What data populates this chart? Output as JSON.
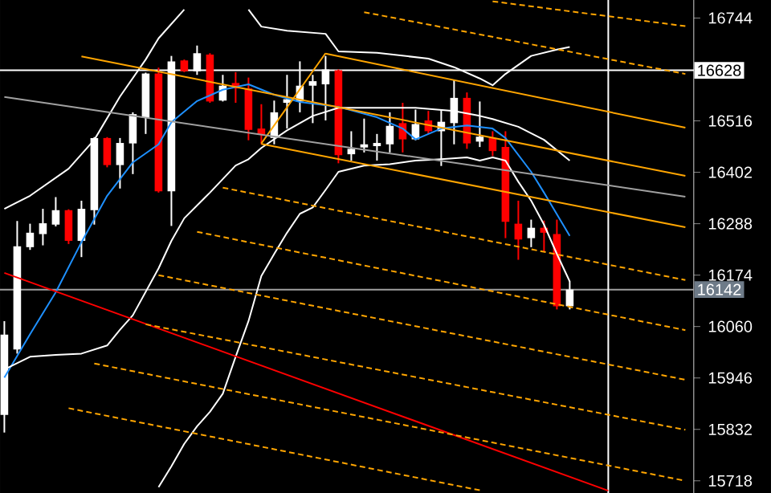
{
  "chart_data": {
    "type": "candlestick",
    "categories": [
      null,
      null,
      null,
      null,
      null,
      null,
      null,
      null,
      null,
      null,
      null,
      null,
      null,
      null,
      null,
      null,
      null,
      null,
      null,
      null,
      null,
      null,
      null,
      null,
      null,
      null,
      null,
      null,
      null,
      null,
      null,
      null,
      null,
      null,
      null,
      null,
      null,
      null,
      null,
      null,
      null,
      null,
      null,
      null,
      null,
      null,
      null,
      null,
      null,
      null,
      null,
      null,
      null,
      null
    ],
    "ohlc": [
      [
        15864,
        16072,
        15825,
        16042
      ],
      [
        16009,
        16294,
        16000,
        16238
      ],
      [
        16236,
        16288,
        16230,
        16268
      ],
      [
        16265,
        16321,
        16240,
        16289
      ],
      [
        16286,
        16347,
        16282,
        16318
      ],
      [
        16318,
        16320,
        16243,
        16250
      ],
      [
        16250,
        16339,
        16214,
        16321
      ],
      [
        16318,
        16480,
        16286,
        16478
      ],
      [
        16478,
        16480,
        16413,
        16418
      ],
      [
        16418,
        16478,
        16366,
        16467
      ],
      [
        16466,
        16535,
        16398,
        16531
      ],
      [
        16523,
        16623,
        16487,
        16621
      ],
      [
        16621,
        16634,
        16357,
        16360
      ],
      [
        16360,
        16660,
        16283,
        16648
      ],
      [
        16650,
        16652,
        16624,
        16626
      ],
      [
        16626,
        16683,
        16618,
        16666
      ],
      [
        16663,
        16666,
        16556,
        16559
      ],
      [
        16561,
        16618,
        16559,
        16594
      ],
      [
        16600,
        16624,
        16556,
        16588
      ],
      [
        16588,
        16612,
        16473,
        16496
      ],
      [
        16499,
        16553,
        16464,
        16485
      ],
      [
        16478,
        16561,
        16464,
        16535
      ],
      [
        16556,
        16618,
        16499,
        16564
      ],
      [
        16559,
        16648,
        16535,
        16594
      ],
      [
        16594,
        16618,
        16511,
        16604
      ],
      [
        16597,
        16660,
        16517,
        16630
      ],
      [
        16628,
        16630,
        16422,
        16440
      ],
      [
        16442,
        16493,
        16428,
        16454
      ],
      [
        16457,
        16521,
        16446,
        16464
      ],
      [
        16460,
        16487,
        16428,
        16467
      ],
      [
        16464,
        16535,
        16446,
        16505
      ],
      [
        16511,
        16556,
        16446,
        16475
      ],
      [
        16475,
        16541,
        16473,
        16509
      ],
      [
        16517,
        16538,
        16487,
        16493
      ],
      [
        16493,
        16541,
        16416,
        16514
      ],
      [
        16511,
        16606,
        16464,
        16567
      ],
      [
        16567,
        16579,
        16454,
        16466
      ],
      [
        16470,
        16559,
        16458,
        16481
      ],
      [
        16478,
        16493,
        16438,
        16449
      ],
      [
        16458,
        16493,
        16256,
        16292
      ],
      [
        16288,
        16339,
        16208,
        16253
      ],
      [
        16256,
        16297,
        16236,
        16279
      ],
      [
        16279,
        16295,
        16226,
        16268
      ],
      [
        16265,
        16297,
        16098,
        16105
      ],
      [
        16105,
        16161,
        16098,
        16142
      ],
      null,
      null,
      null,
      null,
      null,
      null,
      null,
      null,
      null
    ],
    "colors": [
      "#ffffff",
      "#ffffff",
      "#ffffff",
      "#ffffff",
      "#ffffff",
      "#ff0000",
      "#ffffff",
      "#ffffff",
      "#ff0000",
      "#ffffff",
      "#ffffff",
      "#ffffff",
      "#ff0000",
      "#ffffff",
      "#ff0000",
      "#ffffff",
      "#ff0000",
      "#ffffff",
      "#ff0000",
      "#ff0000",
      "#ff0000",
      "#ffffff",
      "#ffffff",
      "#ffffff",
      "#ffffff",
      "#ffffff",
      "#ff0000",
      "#ffffff",
      "#ffffff",
      "#ffffff",
      "#ffffff",
      "#ff0000",
      "#ffffff",
      "#ff0000",
      "#ffffff",
      "#ffffff",
      "#ff0000",
      "#ffffff",
      "#ff0000",
      "#ff0000",
      "#ff0000",
      "#ffffff",
      "#ff0000",
      "#ff0000",
      "#ffffff",
      null,
      null,
      null,
      null,
      null,
      null,
      null,
      null,
      null
    ],
    "series": [
      {
        "type": "line",
        "color": "#1e90ff",
        "values": [
          15947,
          null,
          16043,
          null,
          16136,
          null,
          16247,
          null,
          16350,
          null,
          16424,
          null,
          16464,
          16513,
          null,
          16560,
          null,
          16585,
          null,
          16597,
          null,
          16574,
          null,
          16558,
          null,
          null,
          16547,
          null,
          null,
          16524,
          null,
          16499,
          16475,
          null,
          16499,
          null,
          16506,
          null,
          16499,
          16478,
          null,
          16403,
          16357,
          null,
          16261,
          null,
          null,
          null,
          null,
          null,
          null,
          null,
          null,
          null
        ]
      },
      {
        "type": "line",
        "color": "#ffffff",
        "values": [
          16321,
          null,
          16350,
          null,
          null,
          16410,
          null,
          16474,
          null,
          16570,
          null,
          16652,
          16699,
          16731,
          16763,
          null,
          null,
          null,
          null,
          null,
          null,
          null,
          null,
          null,
          null,
          null,
          null,
          null,
          null,
          null,
          null,
          null,
          null,
          null,
          null,
          null,
          null,
          null,
          null,
          null,
          null,
          null,
          null,
          null,
          null,
          null,
          null,
          null,
          null,
          null,
          null,
          null,
          null,
          null
        ]
      },
      {
        "type": "line",
        "color": "#ffffff",
        "values": [
          null,
          null,
          null,
          null,
          null,
          null,
          null,
          null,
          null,
          null,
          null,
          null,
          null,
          null,
          null,
          null,
          null,
          null,
          null,
          16763,
          16725,
          null,
          16716,
          null,
          null,
          16709,
          16670,
          null,
          null,
          16667,
          null,
          null,
          null,
          16654,
          null,
          16635,
          null,
          16610,
          16595,
          16620,
          null,
          16660,
          null,
          16674,
          16680,
          null,
          null,
          null,
          null,
          null,
          null,
          null,
          null,
          null
        ]
      },
      {
        "type": "line",
        "color": "#ffffff",
        "values": [
          15965,
          null,
          15993,
          null,
          15997,
          null,
          16000,
          null,
          16018,
          16053,
          16085,
          null,
          16189,
          16250,
          16300,
          null,
          16357,
          null,
          16417,
          16431,
          16456,
          null,
          16495,
          null,
          16527,
          null,
          16545,
          null,
          null,
          16545,
          null,
          null,
          16545,
          null,
          null,
          16538,
          null,
          16527,
          16520,
          null,
          16503,
          null,
          16474,
          null,
          16428,
          null,
          null,
          null,
          null,
          null,
          null,
          null,
          null,
          null
        ]
      },
      {
        "type": "line",
        "color": "#ffffff",
        "values": [
          null,
          null,
          null,
          null,
          null,
          null,
          null,
          null,
          null,
          null,
          null,
          null,
          15704,
          15750,
          15800,
          15839,
          15871,
          15911,
          15993,
          16072,
          16172,
          16221,
          16268,
          16310,
          16324,
          16363,
          16403,
          null,
          16417,
          null,
          16420,
          null,
          16428,
          null,
          16431,
          null,
          16435,
          16428,
          16435,
          16428,
          16381,
          16339,
          16286,
          16221,
          16160,
          null,
          null,
          null,
          null,
          null,
          null,
          null,
          null,
          null
        ]
      },
      {
        "type": "line",
        "color": "#ffa500",
        "values": [
          null,
          null,
          null,
          null,
          null,
          null,
          null,
          null,
          null,
          null,
          null,
          null,
          null,
          null,
          null,
          null,
          null,
          null,
          null,
          null,
          null,
          null,
          null,
          null,
          null,
          16665,
          null,
          null,
          null,
          null,
          null,
          null,
          null,
          null,
          null,
          null,
          null,
          null,
          null,
          null,
          null,
          null,
          null,
          null,
          null,
          null,
          null,
          null,
          null,
          null,
          null,
          null,
          null,
          16501
        ]
      },
      {
        "type": "line",
        "color": "#ffa500",
        "values": [
          null,
          null,
          null,
          null,
          null,
          null,
          16659,
          null,
          null,
          null,
          null,
          null,
          null,
          null,
          null,
          null,
          null,
          null,
          null,
          null,
          null,
          null,
          null,
          null,
          null,
          null,
          null,
          null,
          null,
          null,
          null,
          null,
          null,
          null,
          null,
          null,
          null,
          null,
          null,
          null,
          null,
          null,
          null,
          null,
          null,
          null,
          null,
          null,
          null,
          null,
          null,
          null,
          null,
          16394
        ]
      },
      {
        "type": "line",
        "color": "#ffa500",
        "values": [
          null,
          null,
          null,
          null,
          null,
          null,
          null,
          null,
          null,
          null,
          null,
          null,
          null,
          null,
          null,
          null,
          null,
          null,
          null,
          null,
          16465,
          null,
          null,
          null,
          null,
          null,
          null,
          null,
          null,
          null,
          null,
          null,
          null,
          null,
          null,
          null,
          null,
          null,
          null,
          null,
          null,
          null,
          null,
          null,
          null,
          null,
          null,
          null,
          null,
          null,
          null,
          null,
          null,
          16280
        ]
      },
      {
        "type": "line",
        "color": "#ffa500",
        "values": [
          null,
          null,
          null,
          null,
          null,
          null,
          null,
          null,
          null,
          null,
          null,
          null,
          null,
          null,
          null,
          null,
          null,
          null,
          null,
          null,
          16466,
          null,
          null,
          null,
          null,
          16666,
          null,
          null,
          null,
          null,
          null,
          null,
          null,
          null,
          null,
          null,
          null,
          null,
          null,
          null,
          null,
          null,
          null,
          null,
          null,
          null,
          null,
          null,
          null,
          null,
          null,
          null,
          null,
          null
        ]
      },
      {
        "type": "line",
        "color": "#ffa500",
        "line_style": "dashed",
        "values": [
          null,
          null,
          null,
          null,
          null,
          null,
          null,
          null,
          null,
          null,
          null,
          null,
          null,
          null,
          null,
          null,
          null,
          null,
          null,
          null,
          null,
          null,
          null,
          null,
          null,
          null,
          null,
          null,
          null,
          null,
          null,
          null,
          null,
          null,
          null,
          null,
          null,
          null,
          16781,
          null,
          null,
          null,
          null,
          null,
          null,
          null,
          null,
          null,
          null,
          null,
          null,
          null,
          null,
          16726
        ]
      },
      {
        "type": "line",
        "color": "#ffa500",
        "line_style": "dashed",
        "values": [
          null,
          null,
          null,
          null,
          null,
          null,
          null,
          null,
          null,
          null,
          null,
          null,
          null,
          null,
          null,
          null,
          null,
          null,
          null,
          null,
          null,
          null,
          null,
          null,
          null,
          null,
          null,
          null,
          16757,
          null,
          null,
          null,
          null,
          null,
          null,
          null,
          null,
          null,
          null,
          null,
          null,
          null,
          null,
          null,
          null,
          null,
          null,
          null,
          null,
          null,
          null,
          null,
          null,
          16620
        ]
      },
      {
        "type": "line",
        "color": "#ffa500",
        "line_style": "dashed",
        "values": [
          null,
          null,
          null,
          null,
          null,
          null,
          null,
          null,
          null,
          null,
          null,
          null,
          null,
          null,
          null,
          null,
          null,
          16368,
          null,
          null,
          null,
          null,
          null,
          null,
          null,
          null,
          null,
          null,
          null,
          null,
          null,
          null,
          null,
          null,
          null,
          null,
          null,
          null,
          null,
          null,
          null,
          null,
          null,
          null,
          null,
          null,
          null,
          null,
          null,
          null,
          null,
          null,
          null,
          16163
        ]
      },
      {
        "type": "line",
        "color": "#ffa500",
        "line_style": "dashed",
        "values": [
          null,
          null,
          null,
          null,
          null,
          null,
          null,
          null,
          null,
          null,
          null,
          null,
          null,
          null,
          null,
          16270,
          null,
          null,
          null,
          null,
          null,
          null,
          null,
          null,
          null,
          null,
          null,
          null,
          null,
          null,
          null,
          null,
          null,
          null,
          null,
          null,
          null,
          null,
          null,
          null,
          null,
          null,
          null,
          null,
          null,
          null,
          null,
          null,
          null,
          null,
          null,
          null,
          null,
          16052
        ]
      },
      {
        "type": "line",
        "color": "#ffa500",
        "line_style": "dashed",
        "values": [
          null,
          null,
          null,
          null,
          null,
          null,
          null,
          null,
          null,
          null,
          null,
          null,
          16174,
          null,
          null,
          null,
          null,
          null,
          null,
          null,
          null,
          null,
          null,
          null,
          null,
          null,
          null,
          null,
          null,
          null,
          null,
          null,
          null,
          null,
          null,
          null,
          null,
          null,
          null,
          null,
          null,
          null,
          null,
          null,
          null,
          null,
          null,
          null,
          null,
          null,
          null,
          null,
          null,
          15942
        ]
      },
      {
        "type": "line",
        "color": "#ffa500",
        "line_style": "dashed",
        "values": [
          null,
          null,
          null,
          null,
          null,
          null,
          null,
          null,
          null,
          null,
          null,
          16065,
          null,
          null,
          null,
          null,
          null,
          null,
          null,
          null,
          null,
          null,
          null,
          null,
          null,
          null,
          null,
          null,
          null,
          null,
          null,
          null,
          null,
          null,
          null,
          null,
          null,
          null,
          null,
          null,
          null,
          null,
          null,
          null,
          null,
          null,
          null,
          null,
          null,
          null,
          null,
          null,
          null,
          15831
        ]
      },
      {
        "type": "line",
        "color": "#ffa500",
        "line_style": "dashed",
        "values": [
          null,
          null,
          null,
          null,
          null,
          null,
          null,
          15978,
          null,
          null,
          null,
          null,
          null,
          null,
          null,
          null,
          null,
          null,
          null,
          null,
          null,
          null,
          null,
          null,
          null,
          null,
          null,
          null,
          null,
          null,
          null,
          null,
          null,
          null,
          null,
          null,
          null,
          null,
          null,
          null,
          null,
          null,
          null,
          null,
          null,
          null,
          null,
          null,
          null,
          null,
          null,
          null,
          null,
          15718
        ]
      },
      {
        "type": "line",
        "color": "#ffa500",
        "line_style": "dashed",
        "values": [
          null,
          null,
          null,
          null,
          null,
          15879,
          null,
          null,
          null,
          null,
          null,
          null,
          null,
          null,
          null,
          null,
          null,
          null,
          null,
          null,
          null,
          null,
          null,
          null,
          null,
          null,
          null,
          null,
          null,
          null,
          null,
          null,
          null,
          null,
          null,
          null,
          null,
          15697,
          null,
          null,
          null,
          null,
          null,
          null,
          null,
          null,
          null,
          null,
          null,
          null,
          null,
          null,
          null,
          null
        ]
      },
      {
        "type": "line",
        "color": "#ff0000",
        "values": [
          16179,
          null,
          null,
          null,
          null,
          null,
          null,
          null,
          null,
          null,
          null,
          null,
          null,
          null,
          null,
          null,
          null,
          null,
          null,
          null,
          null,
          null,
          null,
          null,
          null,
          null,
          null,
          null,
          null,
          null,
          null,
          null,
          null,
          null,
          null,
          null,
          null,
          null,
          null,
          null,
          null,
          null,
          null,
          null,
          null,
          null,
          null,
          15696,
          null,
          null,
          null,
          null,
          null,
          null
        ]
      },
      {
        "type": "line",
        "color": "#a0a0a0",
        "values": [
          16569,
          null,
          null,
          null,
          null,
          null,
          null,
          null,
          null,
          null,
          null,
          null,
          null,
          null,
          null,
          null,
          null,
          null,
          null,
          null,
          null,
          null,
          null,
          null,
          null,
          null,
          null,
          null,
          null,
          null,
          null,
          null,
          null,
          null,
          null,
          null,
          null,
          null,
          null,
          null,
          null,
          null,
          null,
          null,
          null,
          null,
          null,
          null,
          null,
          null,
          null,
          null,
          null,
          16348
        ]
      }
    ],
    "ref_lines": [
      {
        "axis": "y",
        "value": 16628,
        "label": "16628",
        "color": "#ffffff"
      },
      {
        "axis": "y",
        "value": 16142,
        "label": "16142",
        "color": "#a0a0a0"
      }
    ],
    "ylim": [
      15691,
      16784
    ],
    "yticks": [
      16744,
      16516,
      16402,
      16288,
      16174,
      16060,
      15946,
      15832,
      15718
    ],
    "tick_labels": "y",
    "grid": false
  }
}
